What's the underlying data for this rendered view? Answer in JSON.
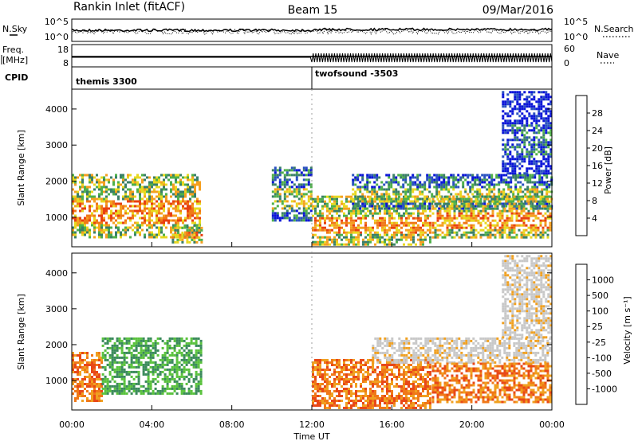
{
  "header": {
    "site": "Rankin Inlet (fitACF)",
    "beam": "Beam 15",
    "date": "09/Mar/2016"
  },
  "strips": {
    "nsky_label": "N.Sky",
    "nsearch_label": "N.Search",
    "noise_ticks": [
      "10^5",
      "10^0"
    ],
    "freq_label_1": "Freq.",
    "freq_label_2": "[MHz]",
    "freq_ticks": [
      "18",
      "8"
    ],
    "nave_label": "Nave",
    "nave_ticks": [
      "60",
      "0"
    ],
    "cpid_label": "CPID",
    "cpid_segments": [
      {
        "name": "themis 3300",
        "start_hour": 0
      },
      {
        "name": "twofsound -3503",
        "start_hour": 12
      }
    ]
  },
  "axes": {
    "xlabel": "Time UT",
    "xticks": [
      "00:00",
      "04:00",
      "08:00",
      "12:00",
      "16:00",
      "20:00",
      "00:00"
    ],
    "ylabel": "Slant Range [km]",
    "yticks": [
      "1000",
      "2000",
      "3000",
      "4000"
    ]
  },
  "colorbars": {
    "power": {
      "label": "Power [dB]",
      "ticks": [
        "4",
        "8",
        "12",
        "16",
        "20",
        "24",
        "28"
      ],
      "colors": [
        "#0a14d8",
        "#2a52c0",
        "#3a7f68",
        "#4fb04a",
        "#e8d820",
        "#f5a020",
        "#f07818",
        "#e84010",
        "#e01010"
      ]
    },
    "velocity": {
      "label": "Velocity [m s⁻¹]",
      "ticks": [
        "1000",
        "500",
        "100",
        "25",
        "-25",
        "-100",
        "-500",
        "-1000"
      ],
      "colors": [
        "#1a3cc8",
        "#2f6ea6",
        "#3a8a5a",
        "#59c23c",
        "#c8c8c8",
        "#f0a020",
        "#f07818",
        "#e84818",
        "#e01818"
      ]
    }
  },
  "chart_data": {
    "type": "heatmap",
    "x_range_hours": [
      0,
      24
    ],
    "y_range_km": [
      180,
      4550
    ],
    "power_regions": [
      {
        "t0": 0.0,
        "t1": 6.5,
        "r0": 400,
        "r1": 2200,
        "level": "high"
      },
      {
        "t0": 5.0,
        "t1": 6.5,
        "r0": 300,
        "r1": 800,
        "level": "high"
      },
      {
        "t0": 10.0,
        "t1": 12.0,
        "r0": 900,
        "r1": 2400,
        "level": "medium"
      },
      {
        "t0": 12.0,
        "t1": 18.0,
        "r0": 200,
        "r1": 1600,
        "level": "high"
      },
      {
        "t0": 14.0,
        "t1": 24.0,
        "r0": 1200,
        "r1": 2200,
        "level": "medium"
      },
      {
        "t0": 18.0,
        "t1": 24.0,
        "r0": 400,
        "r1": 1600,
        "level": "high"
      },
      {
        "t0": 21.5,
        "t1": 24.0,
        "r0": 2200,
        "r1": 4500,
        "level": "low"
      }
    ],
    "velocity_regions": [
      {
        "t0": 0.0,
        "t1": 1.5,
        "r0": 400,
        "r1": 1800,
        "velocity": "negative"
      },
      {
        "t0": 1.5,
        "t1": 6.5,
        "r0": 600,
        "r1": 2200,
        "velocity": "positive"
      },
      {
        "t0": 12.0,
        "t1": 18.0,
        "r0": 200,
        "r1": 1600,
        "velocity": "negative"
      },
      {
        "t0": 15.0,
        "t1": 24.0,
        "r0": 1500,
        "r1": 2200,
        "velocity": "near-zero"
      },
      {
        "t0": 18.0,
        "t1": 24.0,
        "r0": 400,
        "r1": 1500,
        "velocity": "negative"
      },
      {
        "t0": 21.5,
        "t1": 24.0,
        "r0": 2200,
        "r1": 4500,
        "velocity": "near-zero"
      }
    ]
  }
}
